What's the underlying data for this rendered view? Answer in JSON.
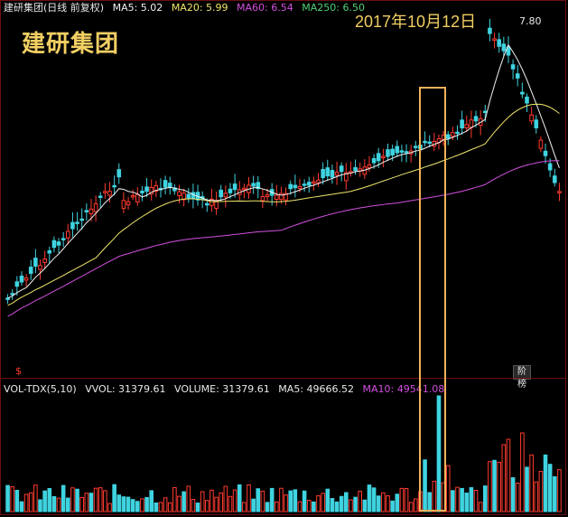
{
  "header": {
    "title": "建研集团(日线 前复权)",
    "ma5": "MA5: 5.02",
    "ma20": "MA20: 5.99",
    "ma60": "MA60: 6.54",
    "ma250": "MA250: 6.50"
  },
  "overlay": {
    "stock_name": "建研集团",
    "date": "2017年10月12日",
    "high_marker": "7.80",
    "badge": "阶榜",
    "marker": "$"
  },
  "volume": {
    "indicator": "VOL-TDX(5,10)",
    "vvol": "VVOL: 31379.61",
    "volume": "VOLUME: 31379.61",
    "ma5": "MA5: 49666.52",
    "ma10": "MA10: 49541.08"
  },
  "colors": {
    "up": "#ff3b30",
    "down": "#3fd3e0",
    "ma5": "#f2f2f2",
    "ma20": "#f0e66a",
    "ma60": "#d34fe0",
    "highlight": "#f2b25a"
  }
}
